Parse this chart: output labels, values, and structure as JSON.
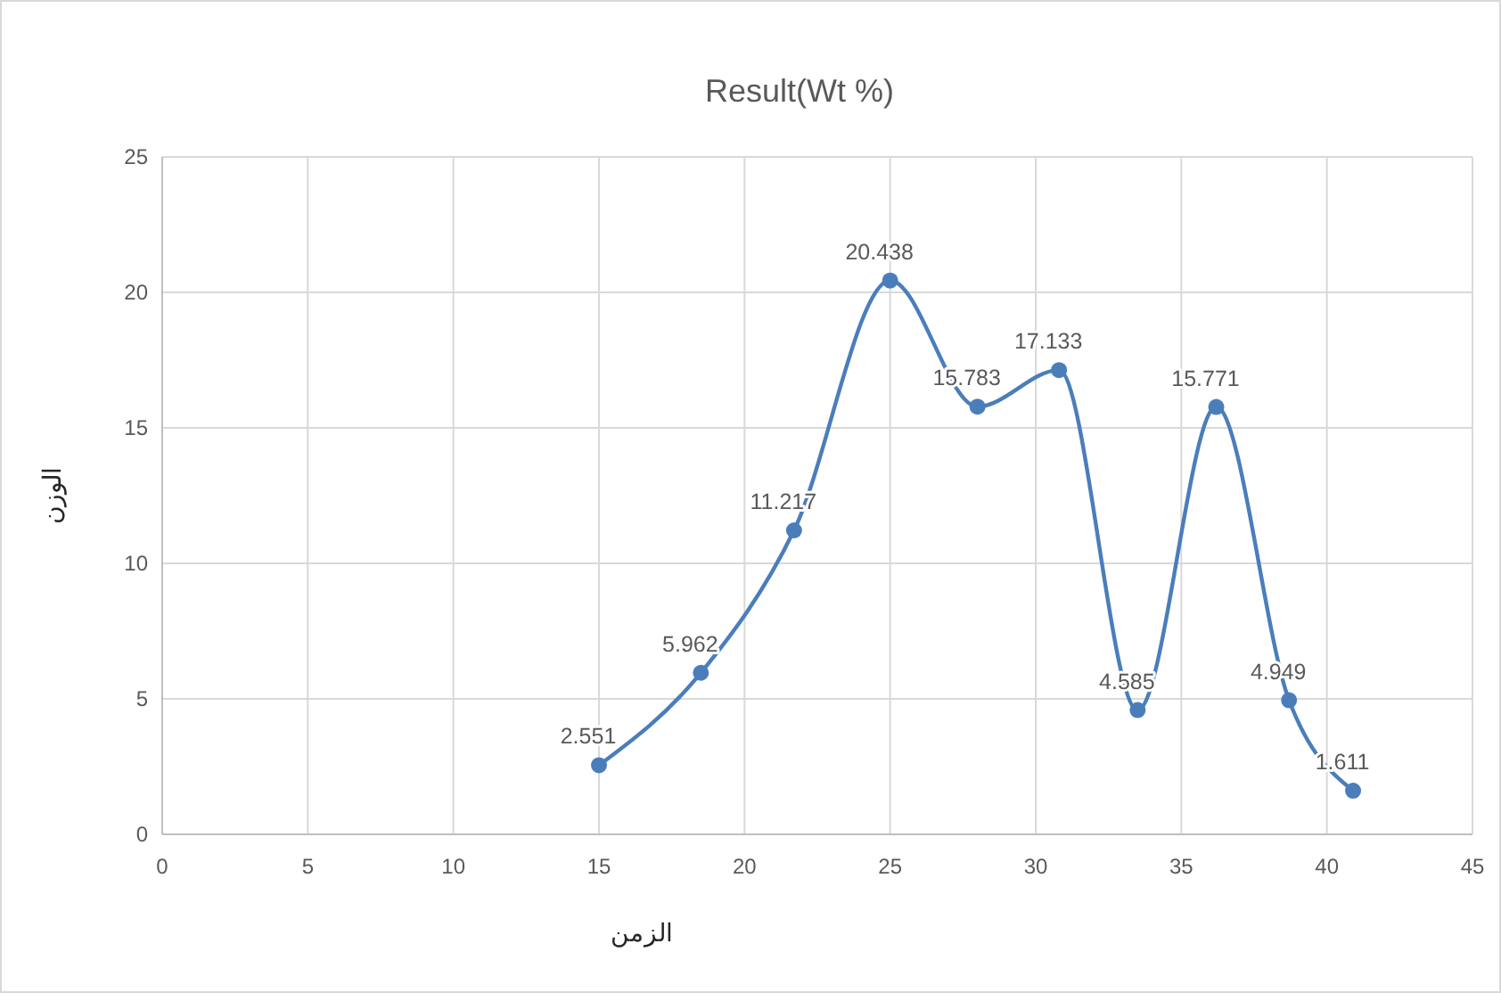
{
  "chart_data": {
    "type": "line",
    "title": "Result(Wt %)",
    "xlabel": "الزمن",
    "ylabel": "الوزن",
    "x": [
      15,
      18.5,
      21.7,
      25,
      28,
      30.8,
      33.5,
      36.2,
      38.7,
      40.9
    ],
    "series": [
      {
        "color": "#4a7ebb",
        "values": [
          2.551,
          5.962,
          11.217,
          20.438,
          15.783,
          17.133,
          4.585,
          15.771,
          4.949,
          1.611
        ]
      }
    ],
    "xlim": [
      0,
      45
    ],
    "xticks": [
      0,
      5,
      10,
      15,
      20,
      25,
      30,
      35,
      40,
      45
    ],
    "ylim": [
      0,
      25
    ],
    "yticks": [
      0,
      5,
      10,
      15,
      20,
      25
    ],
    "grid": true,
    "marker": "circle",
    "line_style": "solid",
    "data_labels": true
  }
}
